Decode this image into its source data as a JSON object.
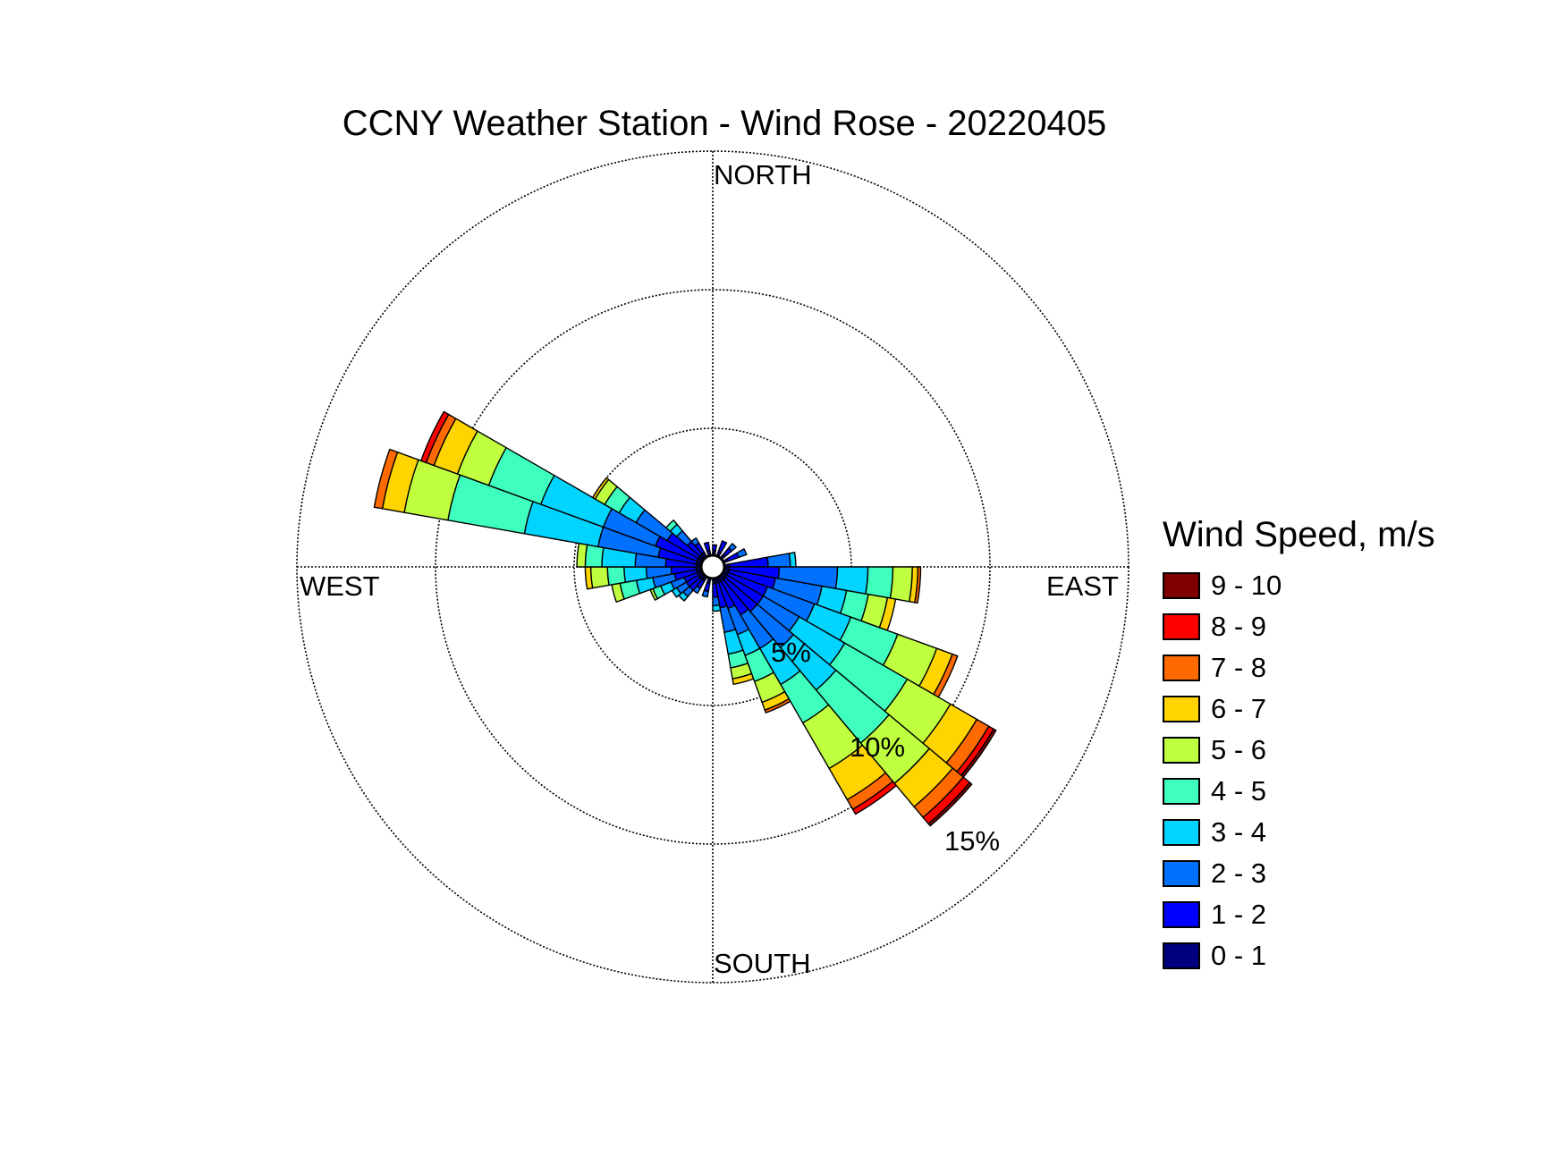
{
  "chart_data": {
    "type": "wind-rose",
    "title": "CCNY Weather Station - Wind Rose - 20220405",
    "direction_labels": {
      "north": "NORTH",
      "south": "SOUTH",
      "west": "WEST",
      "east": "EAST"
    },
    "radial_ticks": [
      {
        "value": 5,
        "label": "5%"
      },
      {
        "value": 10,
        "label": "10%"
      },
      {
        "value": 15,
        "label": "15%"
      }
    ],
    "radial_max": 15,
    "grid": true,
    "legend": {
      "title": "Wind Speed, m/s",
      "position": "right",
      "bins": [
        {
          "label": "9 - 10",
          "color": "#7f0000"
        },
        {
          "label": "8 - 9",
          "color": "#ff0000"
        },
        {
          "label": "7 - 8",
          "color": "#ff6a00"
        },
        {
          "label": "6 - 7",
          "color": "#ffd400"
        },
        {
          "label": "5 - 6",
          "color": "#bfff3f"
        },
        {
          "label": "4 - 5",
          "color": "#3fffbf"
        },
        {
          "label": "3 - 4",
          "color": "#00d4ff"
        },
        {
          "label": "2 - 3",
          "color": "#0070ff"
        },
        {
          "label": "1 - 2",
          "color": "#0000ff"
        },
        {
          "label": "0 - 1",
          "color": "#00007f"
        }
      ]
    },
    "bin_order": [
      "0 - 1",
      "1 - 2",
      "2 - 3",
      "3 - 4",
      "4 - 5",
      "5 - 6",
      "6 - 7",
      "7 - 8",
      "8 - 9",
      "9 - 10"
    ],
    "sector_width_deg": 10,
    "sectors": [
      {
        "direction_deg": 5,
        "values": [
          0.6,
          0.2,
          0,
          0,
          0,
          0,
          0,
          0,
          0,
          0
        ]
      },
      {
        "direction_deg": 25,
        "values": [
          0.6,
          0.4,
          0,
          0,
          0,
          0,
          0,
          0,
          0,
          0
        ]
      },
      {
        "direction_deg": 45,
        "values": [
          0.6,
          0.3,
          0.2,
          0,
          0,
          0,
          0,
          0,
          0,
          0
        ]
      },
      {
        "direction_deg": 65,
        "values": [
          0.6,
          0.4,
          0.3,
          0,
          0,
          0,
          0,
          0,
          0,
          0
        ]
      },
      {
        "direction_deg": 85,
        "values": [
          0.6,
          1.4,
          0.8,
          0.2,
          0,
          0,
          0,
          0,
          0,
          0
        ]
      },
      {
        "direction_deg": 95,
        "values": [
          0.6,
          1.8,
          2.1,
          1.1,
          0.9,
          0.7,
          0.2,
          0.1,
          0,
          0
        ]
      },
      {
        "direction_deg": 105,
        "values": [
          0.6,
          1.7,
          1.7,
          0.9,
          0.8,
          0.7,
          0.3,
          0,
          0,
          0
        ]
      },
      {
        "direction_deg": 115,
        "values": [
          0.6,
          1.5,
          1.8,
          1.4,
          1.8,
          1.5,
          0.6,
          0.2,
          0,
          0
        ]
      },
      {
        "direction_deg": 125,
        "values": [
          0.6,
          1.5,
          1.5,
          1.9,
          2.6,
          1.8,
          1.1,
          0.5,
          0.2,
          0.1
        ]
      },
      {
        "direction_deg": 135,
        "values": [
          0.6,
          1.5,
          1.7,
          2.0,
          2.5,
          1.9,
          1.1,
          0.5,
          0.3,
          0.1
        ]
      },
      {
        "direction_deg": 145,
        "values": [
          0.6,
          1.4,
          1.4,
          1.5,
          1.6,
          1.9,
          1.3,
          0.4,
          0.2,
          0
        ]
      },
      {
        "direction_deg": 155,
        "values": [
          0.6,
          1.0,
          1.0,
          0.8,
          1.0,
          0.8,
          0.3,
          0.1,
          0,
          0
        ]
      },
      {
        "direction_deg": 165,
        "values": [
          0.6,
          0.9,
          0.9,
          0.8,
          0.5,
          0.4,
          0.2,
          0,
          0,
          0
        ]
      },
      {
        "direction_deg": 175,
        "values": [
          0.6,
          0.5,
          0.3,
          0.2,
          0,
          0,
          0,
          0,
          0,
          0
        ]
      },
      {
        "direction_deg": 195,
        "values": [
          0.6,
          0.3,
          0.2,
          0,
          0,
          0,
          0,
          0,
          0,
          0
        ]
      },
      {
        "direction_deg": 215,
        "values": [
          0.6,
          0.3,
          0.2,
          0,
          0,
          0,
          0,
          0,
          0,
          0
        ]
      },
      {
        "direction_deg": 225,
        "values": [
          0.6,
          0.5,
          0.3,
          0.2,
          0,
          0,
          0,
          0,
          0,
          0
        ]
      },
      {
        "direction_deg": 235,
        "values": [
          0.6,
          0.5,
          0.4,
          0.2,
          0,
          0,
          0,
          0,
          0,
          0
        ]
      },
      {
        "direction_deg": 245,
        "values": [
          0.6,
          0.5,
          0.5,
          0.4,
          0.3,
          0.1,
          0,
          0,
          0,
          0
        ]
      },
      {
        "direction_deg": 255,
        "values": [
          0.6,
          0.8,
          0.8,
          0.6,
          0.6,
          0.3,
          0,
          0,
          0,
          0
        ]
      },
      {
        "direction_deg": 265,
        "values": [
          0.6,
          0.9,
          0.9,
          0.8,
          0.6,
          0.6,
          0.2,
          0,
          0,
          0
        ]
      },
      {
        "direction_deg": 275,
        "values": [
          0.6,
          1.1,
          1.1,
          1.2,
          0.6,
          0.3,
          0,
          0,
          0,
          0
        ]
      },
      {
        "direction_deg": 285,
        "values": [
          0.6,
          1.4,
          2.2,
          2.7,
          2.8,
          1.6,
          0.8,
          0.3,
          0,
          0
        ]
      },
      {
        "direction_deg": 295,
        "values": [
          0.6,
          1.6,
          2.0,
          2.4,
          2.0,
          1.2,
          0.9,
          0.3,
          0.2,
          0
        ]
      },
      {
        "direction_deg": 305,
        "values": [
          0.6,
          1.3,
          1.3,
          0.7,
          0.6,
          0.4,
          0.1,
          0,
          0,
          0
        ]
      },
      {
        "direction_deg": 315,
        "values": [
          0.6,
          0.6,
          0.5,
          0.3,
          0.2,
          0,
          0,
          0,
          0,
          0
        ]
      },
      {
        "direction_deg": 325,
        "values": [
          0.6,
          0.4,
          0.2,
          0,
          0,
          0,
          0,
          0,
          0,
          0
        ]
      },
      {
        "direction_deg": 345,
        "values": [
          0.6,
          0.3,
          0,
          0,
          0,
          0,
          0,
          0,
          0,
          0
        ]
      }
    ]
  }
}
